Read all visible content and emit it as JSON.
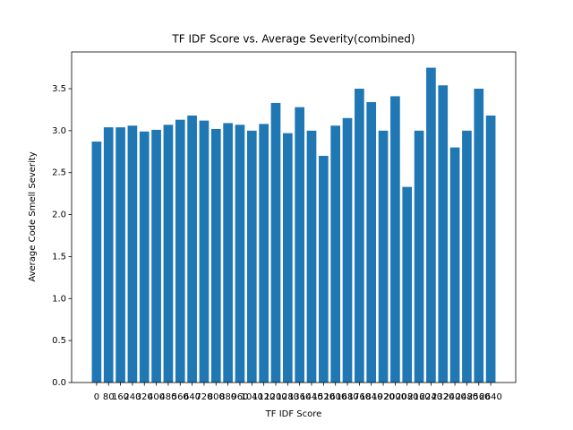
{
  "chart_data": {
    "type": "bar",
    "title": "TF IDF Score vs. Average Severity(combined)",
    "x_label": "TF IDF Score",
    "y_label": "Average Code Smell Severity",
    "categories": [
      "0",
      "80",
      "160",
      "240",
      "320",
      "400",
      "480",
      "560",
      "640",
      "720",
      "800",
      "880",
      "960",
      "1040",
      "1120",
      "1200",
      "1280",
      "1360",
      "1440",
      "1520",
      "1600",
      "1680",
      "1760",
      "1840",
      "1920",
      "2000",
      "2080",
      "2160",
      "2240",
      "2320",
      "2400",
      "2480",
      "2560",
      "2640"
    ],
    "values": [
      2.87,
      3.04,
      3.04,
      3.06,
      2.99,
      3.01,
      3.07,
      3.13,
      3.18,
      3.12,
      3.02,
      3.09,
      3.07,
      3.0,
      3.08,
      3.33,
      2.97,
      3.28,
      3.0,
      2.7,
      3.06,
      3.15,
      3.5,
      3.34,
      3.0,
      3.41,
      2.33,
      3.0,
      3.75,
      3.54,
      2.8,
      3.0,
      3.5,
      3.18
    ],
    "color": "#1f77b4",
    "ylim": [
      0,
      3.9375
    ],
    "yticks": [
      {
        "value": 0,
        "label": "0.0"
      },
      {
        "value": 0.5,
        "label": "0.5"
      },
      {
        "value": 1,
        "label": "1.0"
      },
      {
        "value": 1.5,
        "label": "1.5"
      },
      {
        "value": 2,
        "label": "2.0"
      },
      {
        "value": 2.5,
        "label": "2.5"
      },
      {
        "value": 3,
        "label": "3.0"
      },
      {
        "value": 3.5,
        "label": "3.5"
      }
    ],
    "grid": false
  }
}
